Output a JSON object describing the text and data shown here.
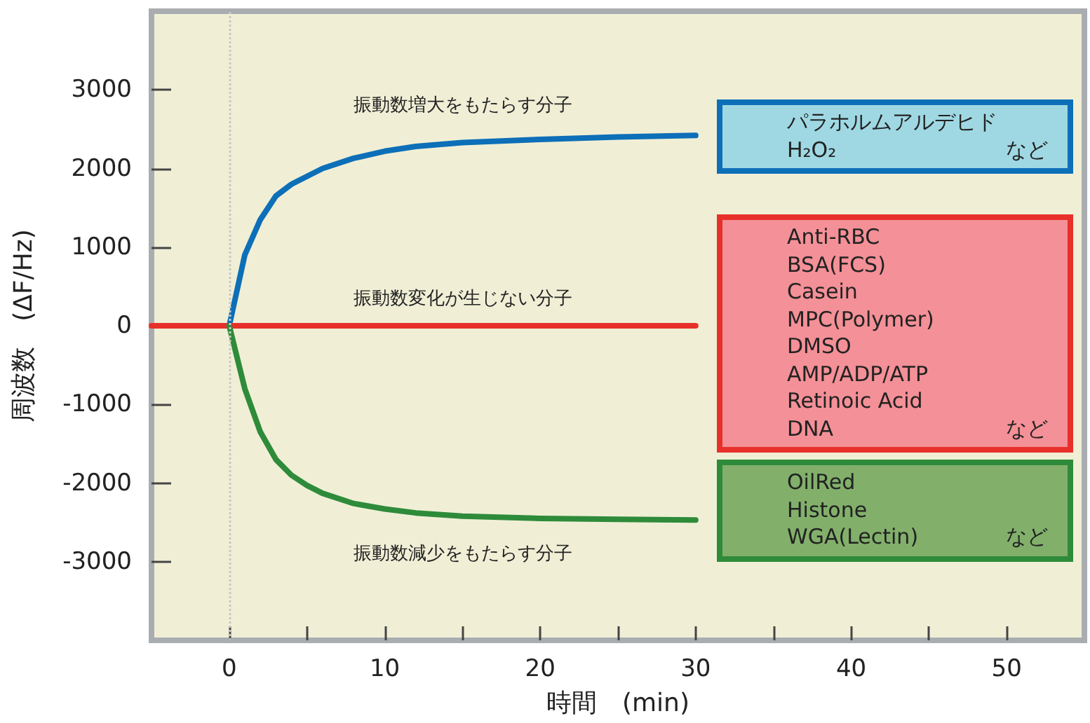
{
  "chart_data": {
    "type": "line",
    "xlabel": "時間　(min)",
    "ylabel": "周波数　(ΔF/Hz)",
    "xlim": [
      -5,
      55
    ],
    "ylim": [
      -4000,
      4000
    ],
    "xticks": [
      0,
      {
        "value": 5,
        "label": null
      },
      10,
      {
        "value": 15,
        "label": null
      },
      20,
      {
        "value": 25,
        "label": null
      },
      30,
      {
        "value": 35,
        "label": null
      },
      40,
      {
        "value": 45,
        "label": null
      },
      50
    ],
    "yticks": [
      -3000,
      -2000,
      -1000,
      0,
      1000,
      2000,
      3000
    ],
    "grid": false,
    "marker": "none",
    "line_style": "solid",
    "series": [
      {
        "color": "#0d6fb8",
        "x": [
          0,
          1,
          2,
          3,
          4,
          5,
          6,
          8,
          10,
          12,
          15,
          20,
          25,
          30
        ],
        "values": [
          0,
          900,
          1350,
          1650,
          1800,
          1900,
          2000,
          2130,
          2220,
          2280,
          2330,
          2370,
          2400,
          2420
        ]
      },
      {
        "color": "#e8302a",
        "x": [
          -5,
          30
        ],
        "values": [
          0,
          0
        ]
      },
      {
        "color": "#2e8b3a",
        "x": [
          0,
          1,
          2,
          3,
          4,
          5,
          6,
          8,
          10,
          12,
          15,
          20,
          25,
          30
        ],
        "values": [
          0,
          -800,
          -1350,
          -1700,
          -1900,
          -2030,
          -2130,
          -2260,
          -2330,
          -2380,
          -2420,
          -2450,
          -2460,
          -2470
        ]
      }
    ],
    "ref_lines": [
      {
        "axis": "x",
        "value": 0,
        "color": "#c8c8c8",
        "line_style": "dotted"
      }
    ],
    "annotations": [
      "振動数増大をもたらす分子",
      "振動数変化が生じない分子",
      "振動数減少をもたらす分子",
      "パラホルムアルデヒド",
      "H₂O₂",
      "など",
      "Anti-RBC",
      "BSA(FCS)",
      "Casein",
      "MPC(Polymer)",
      "DMSO",
      "AMP/ADP/ATP",
      "Retinoic Acid",
      "DNA",
      "など",
      "OilRed",
      "Histone",
      "WGA(Lectin)",
      "など"
    ]
  }
}
